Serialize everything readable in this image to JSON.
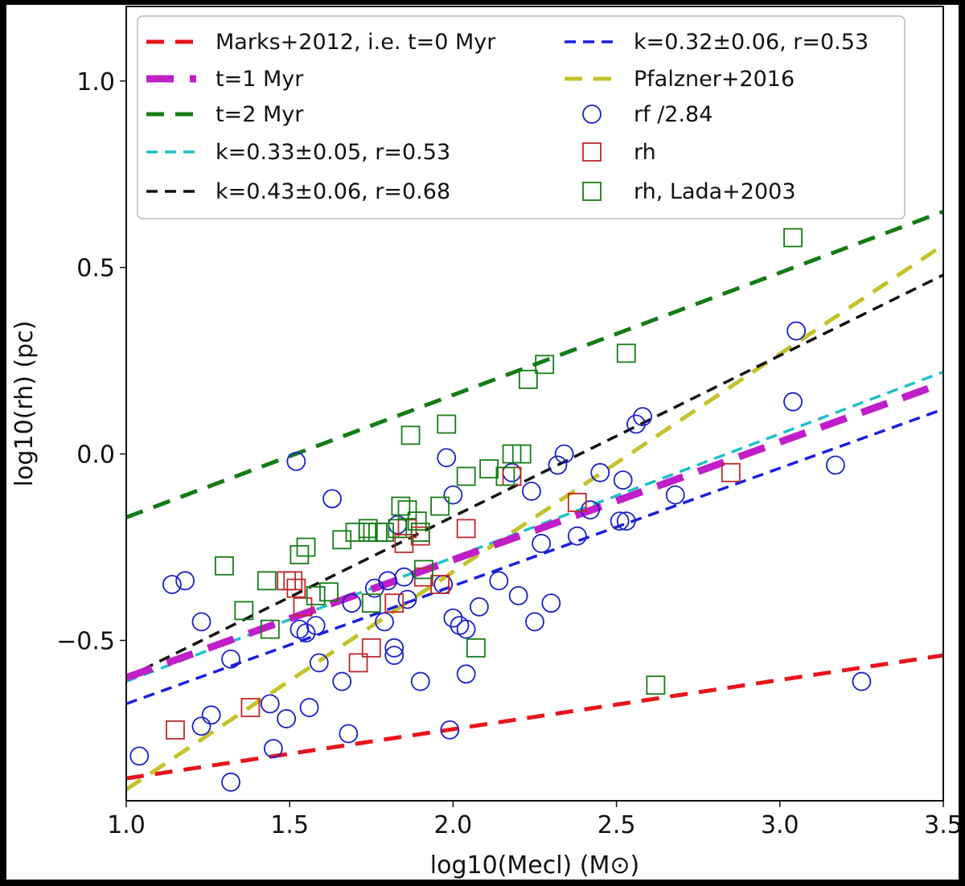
{
  "chart_data": {
    "type": "scatter",
    "xlabel": "log10(Mecl) (M⊙)",
    "ylabel": "log10(rh) (pc)",
    "xlim": [
      1.0,
      3.5
    ],
    "ylim": [
      -0.93,
      1.2
    ],
    "x_ticks": [
      "1.0",
      "1.5",
      "2.0",
      "2.5",
      "3.0",
      "3.5"
    ],
    "y_ticks": [
      "−0.5",
      "0.0",
      "0.5",
      "1.0"
    ],
    "x_tick_values": [
      1.0,
      1.5,
      2.0,
      2.5,
      3.0,
      3.5
    ],
    "y_tick_values": [
      -0.5,
      0.0,
      0.5,
      1.0
    ],
    "grid": false,
    "legend_position": "top",
    "lines": [
      {
        "name": "Marks+2012, i.e. t=0 Myr",
        "color": "#e8141b",
        "x": [
          1.0,
          3.5
        ],
        "y": [
          -0.87,
          -0.54
        ],
        "width": 5,
        "dash": "22,14"
      },
      {
        "name": "t=1 Myr",
        "color": "#c01ec8",
        "x": [
          1.0,
          3.5
        ],
        "y": [
          -0.6,
          0.19
        ],
        "width": 9,
        "dash": "34,20"
      },
      {
        "name": "t=2 Myr",
        "color": "#157c15",
        "x": [
          1.0,
          3.5
        ],
        "y": [
          -0.17,
          0.65
        ],
        "width": 5,
        "dash": "22,14"
      },
      {
        "name": "k=0.33±0.05, r=0.53",
        "color": "#1fc0c8",
        "x": [
          1.0,
          3.5
        ],
        "y": [
          -0.61,
          0.22
        ],
        "width": 3.5,
        "dash": "14,9"
      },
      {
        "name": "k=0.43±0.06, r=0.68",
        "color": "#111111",
        "x": [
          1.0,
          3.5
        ],
        "y": [
          -0.6,
          0.48
        ],
        "width": 3.5,
        "dash": "14,9"
      },
      {
        "name": "k=0.32±0.06, r=0.53",
        "color": "#1a1ee0",
        "x": [
          1.0,
          3.5
        ],
        "y": [
          -0.67,
          0.12
        ],
        "width": 3.5,
        "dash": "14,9"
      },
      {
        "name": "Pfalzner+2016",
        "color": "#c5c22a",
        "x": [
          1.0,
          3.5
        ],
        "y": [
          -0.9,
          0.56
        ],
        "width": 5,
        "dash": "22,14"
      }
    ],
    "series": [
      {
        "name": "rf /2.84",
        "marker": "circle",
        "color": "#1a1ec8",
        "points": [
          [
            1.04,
            -0.81
          ],
          [
            1.14,
            -0.35
          ],
          [
            1.18,
            -0.34
          ],
          [
            1.23,
            -0.45
          ],
          [
            1.23,
            -0.73
          ],
          [
            1.26,
            -0.7
          ],
          [
            1.32,
            -0.55
          ],
          [
            1.32,
            -0.88
          ],
          [
            1.44,
            -0.67
          ],
          [
            1.45,
            -0.79
          ],
          [
            1.49,
            -0.71
          ],
          [
            1.52,
            -0.02
          ],
          [
            1.53,
            -0.47
          ],
          [
            1.55,
            -0.48
          ],
          [
            1.56,
            -0.68
          ],
          [
            1.58,
            -0.46
          ],
          [
            1.59,
            -0.56
          ],
          [
            1.63,
            -0.12
          ],
          [
            1.66,
            -0.61
          ],
          [
            1.68,
            -0.75
          ],
          [
            1.69,
            -0.4
          ],
          [
            1.76,
            -0.36
          ],
          [
            1.79,
            -0.45
          ],
          [
            1.8,
            -0.34
          ],
          [
            1.82,
            -0.52
          ],
          [
            1.82,
            -0.54
          ],
          [
            1.83,
            -0.19
          ],
          [
            1.85,
            -0.33
          ],
          [
            1.86,
            -0.39
          ],
          [
            1.9,
            -0.61
          ],
          [
            1.97,
            -0.35
          ],
          [
            1.98,
            -0.01
          ],
          [
            1.99,
            -0.74
          ],
          [
            2.0,
            -0.11
          ],
          [
            2.0,
            -0.44
          ],
          [
            2.02,
            -0.46
          ],
          [
            2.04,
            -0.47
          ],
          [
            2.04,
            -0.59
          ],
          [
            2.08,
            -0.41
          ],
          [
            2.14,
            -0.34
          ],
          [
            2.18,
            -0.05
          ],
          [
            2.2,
            -0.38
          ],
          [
            2.24,
            -0.1
          ],
          [
            2.25,
            -0.45
          ],
          [
            2.27,
            -0.24
          ],
          [
            2.3,
            -0.4
          ],
          [
            2.32,
            -0.03
          ],
          [
            2.34,
            0.0
          ],
          [
            2.38,
            -0.22
          ],
          [
            2.42,
            -0.15
          ],
          [
            2.45,
            -0.05
          ],
          [
            2.51,
            -0.18
          ],
          [
            2.52,
            -0.07
          ],
          [
            2.53,
            -0.18
          ],
          [
            2.56,
            0.08
          ],
          [
            2.58,
            0.1
          ],
          [
            2.68,
            -0.11
          ],
          [
            3.04,
            0.14
          ],
          [
            3.05,
            0.33
          ],
          [
            3.17,
            -0.03
          ],
          [
            3.25,
            -0.61
          ]
        ]
      },
      {
        "name": "rh",
        "marker": "square",
        "color": "#c0282a",
        "points": [
          [
            1.15,
            -0.74
          ],
          [
            1.38,
            -0.68
          ],
          [
            1.49,
            -0.34
          ],
          [
            1.51,
            -0.34
          ],
          [
            1.52,
            -0.36
          ],
          [
            1.54,
            -0.41
          ],
          [
            1.71,
            -0.56
          ],
          [
            1.75,
            -0.52
          ],
          [
            1.82,
            -0.4
          ],
          [
            1.85,
            -0.24
          ],
          [
            1.86,
            -0.2
          ],
          [
            1.9,
            -0.22
          ],
          [
            1.91,
            -0.33
          ],
          [
            1.96,
            -0.35
          ],
          [
            2.04,
            -0.2
          ],
          [
            2.18,
            -0.06
          ],
          [
            2.38,
            -0.13
          ],
          [
            2.85,
            -0.05
          ]
        ]
      },
      {
        "name": "rh, Lada+2003",
        "marker": "square",
        "color": "#157c15",
        "points": [
          [
            1.3,
            -0.3
          ],
          [
            1.36,
            -0.42
          ],
          [
            1.43,
            -0.34
          ],
          [
            1.44,
            -0.47
          ],
          [
            1.53,
            -0.27
          ],
          [
            1.55,
            -0.25
          ],
          [
            1.58,
            -0.38
          ],
          [
            1.62,
            -0.37
          ],
          [
            1.66,
            -0.23
          ],
          [
            1.7,
            -0.21
          ],
          [
            1.74,
            -0.2
          ],
          [
            1.74,
            -0.21
          ],
          [
            1.75,
            -0.4
          ],
          [
            1.77,
            -0.21
          ],
          [
            1.79,
            -0.21
          ],
          [
            1.83,
            -0.2
          ],
          [
            1.84,
            -0.14
          ],
          [
            1.86,
            -0.15
          ],
          [
            1.87,
            0.05
          ],
          [
            1.89,
            -0.18
          ],
          [
            1.9,
            -0.21
          ],
          [
            1.91,
            -0.31
          ],
          [
            1.96,
            -0.14
          ],
          [
            1.98,
            0.08
          ],
          [
            2.04,
            -0.06
          ],
          [
            2.11,
            -0.04
          ],
          [
            2.07,
            -0.52
          ],
          [
            2.16,
            -0.06
          ],
          [
            2.18,
            0.0
          ],
          [
            2.21,
            0.0
          ],
          [
            2.23,
            0.2
          ],
          [
            2.28,
            0.24
          ],
          [
            2.53,
            0.27
          ],
          [
            2.62,
            -0.62
          ],
          [
            3.04,
            0.58
          ]
        ]
      }
    ],
    "legend": [
      {
        "label": "Marks+2012, i.e. t=0 Myr",
        "kind": "line",
        "ref": 0
      },
      {
        "label": "t=1 Myr",
        "kind": "line",
        "ref": 1
      },
      {
        "label": "t=2 Myr",
        "kind": "line",
        "ref": 2
      },
      {
        "label": "k=0.33±0.05, r=0.53",
        "kind": "line",
        "ref": 3
      },
      {
        "label": "k=0.43±0.06, r=0.68",
        "kind": "line",
        "ref": 4
      },
      {
        "label": "k=0.32±0.06, r=0.53",
        "kind": "line",
        "ref": 5
      },
      {
        "label": "Pfalzner+2016",
        "kind": "line",
        "ref": 6
      },
      {
        "label": "rf /2.84",
        "kind": "marker",
        "ref": 0
      },
      {
        "label": "rh",
        "kind": "marker",
        "ref": 1
      },
      {
        "label": "rh, Lada+2003",
        "kind": "marker",
        "ref": 2
      }
    ]
  }
}
